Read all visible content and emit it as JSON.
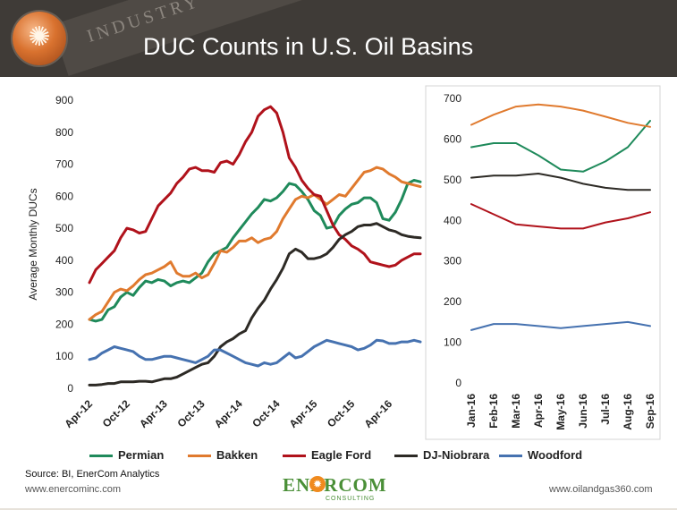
{
  "header": {
    "title": "DUC Counts in U.S. Oil Basins",
    "banner_text": "INDUSTRY"
  },
  "colors": {
    "Permian": "#1f8a5b",
    "Bakken": "#e07a2e",
    "Eagle Ford": "#b0121b",
    "DJ-Niobrara": "#2d2a25",
    "Woodford": "#4672b0"
  },
  "legend": [
    {
      "label": "Permian",
      "color": "#1f8a5b"
    },
    {
      "label": "Bakken",
      "color": "#e07a2e"
    },
    {
      "label": "Eagle Ford",
      "color": "#b0121b"
    },
    {
      "label": "DJ-Niobrara",
      "color": "#2d2a25"
    },
    {
      "label": "Woodford",
      "color": "#4672b0"
    }
  ],
  "source": "Source: BI, EnerCom Analytics",
  "footer": {
    "left_url": "www.enercominc.com",
    "right_url": "www.oilandgas360.com",
    "brand_name": "ENERCOM",
    "brand_sub": "CONSULTING"
  },
  "chart_data": [
    {
      "type": "line",
      "ylabel": "Average Monthly DUCs",
      "ylim": [
        0,
        900
      ],
      "yticks": [
        0,
        100,
        200,
        300,
        400,
        500,
        600,
        700,
        800,
        900
      ],
      "x_tick_labels": [
        "Apr-12",
        "Oct-12",
        "Apr-13",
        "Oct-13",
        "Apr-14",
        "Oct-14",
        "Apr-15",
        "Oct-15",
        "Apr-16"
      ],
      "x_tick_index": [
        0,
        6,
        12,
        18,
        24,
        30,
        36,
        42,
        48
      ],
      "n_points": 54,
      "grid": false,
      "series": [
        {
          "name": "Permian",
          "values": [
            215,
            210,
            215,
            245,
            255,
            285,
            300,
            290,
            315,
            335,
            330,
            340,
            335,
            320,
            330,
            335,
            330,
            345,
            360,
            395,
            420,
            430,
            440,
            470,
            495,
            520,
            545,
            565,
            590,
            585,
            595,
            615,
            640,
            635,
            615,
            590,
            555,
            540,
            500,
            505,
            540,
            560,
            575,
            580,
            595,
            595,
            580,
            530,
            525,
            550,
            590,
            640,
            650,
            645
          ]
        },
        {
          "name": "Bakken",
          "values": [
            215,
            230,
            240,
            270,
            300,
            310,
            305,
            320,
            340,
            355,
            360,
            370,
            380,
            395,
            360,
            350,
            350,
            360,
            345,
            355,
            390,
            430,
            425,
            440,
            460,
            460,
            470,
            455,
            465,
            470,
            490,
            530,
            560,
            590,
            600,
            595,
            605,
            590,
            575,
            590,
            605,
            600,
            625,
            650,
            675,
            680,
            690,
            685,
            670,
            660,
            645,
            640,
            635,
            630
          ]
        },
        {
          "name": "Eagle Ford",
          "values": [
            330,
            370,
            390,
            410,
            430,
            470,
            500,
            495,
            485,
            490,
            530,
            570,
            590,
            610,
            640,
            660,
            685,
            690,
            680,
            680,
            675,
            705,
            710,
            700,
            730,
            770,
            800,
            850,
            870,
            880,
            860,
            800,
            720,
            690,
            650,
            625,
            605,
            600,
            555,
            510,
            480,
            465,
            445,
            435,
            420,
            395,
            390,
            385,
            380,
            385,
            400,
            410,
            420,
            420
          ]
        },
        {
          "name": "DJ-Niobrara",
          "values": [
            10,
            10,
            12,
            15,
            15,
            20,
            20,
            20,
            22,
            22,
            20,
            25,
            30,
            30,
            35,
            45,
            55,
            65,
            75,
            80,
            100,
            130,
            145,
            155,
            170,
            180,
            220,
            250,
            275,
            310,
            340,
            375,
            420,
            435,
            425,
            405,
            405,
            410,
            420,
            440,
            465,
            480,
            490,
            505,
            510,
            510,
            515,
            505,
            495,
            490,
            480,
            475,
            472,
            470
          ]
        },
        {
          "name": "Woodford",
          "values": [
            90,
            95,
            110,
            120,
            130,
            125,
            120,
            115,
            100,
            90,
            90,
            95,
            100,
            100,
            95,
            90,
            85,
            80,
            90,
            100,
            120,
            120,
            110,
            100,
            90,
            80,
            75,
            70,
            80,
            75,
            80,
            95,
            110,
            95,
            100,
            115,
            130,
            140,
            150,
            145,
            140,
            135,
            130,
            120,
            125,
            135,
            150,
            148,
            140,
            140,
            145,
            145,
            150,
            145
          ]
        }
      ]
    },
    {
      "type": "line",
      "categories": [
        "Jan-16",
        "Feb-16",
        "Mar-16",
        "Apr-16",
        "May-16",
        "Jun-16",
        "Jul-16",
        "Aug-16",
        "Sep-16"
      ],
      "ylim": [
        0,
        700
      ],
      "yticks": [
        0,
        100,
        200,
        300,
        400,
        500,
        600,
        700
      ],
      "grid": false,
      "series": [
        {
          "name": "Permian",
          "values": [
            580,
            590,
            590,
            560,
            525,
            520,
            545,
            580,
            645
          ]
        },
        {
          "name": "Bakken",
          "values": [
            635,
            660,
            680,
            685,
            680,
            670,
            655,
            640,
            630
          ]
        },
        {
          "name": "Eagle Ford",
          "values": [
            440,
            415,
            390,
            385,
            380,
            380,
            395,
            405,
            420
          ]
        },
        {
          "name": "DJ-Niobrara",
          "values": [
            505,
            510,
            510,
            515,
            505,
            490,
            480,
            475,
            475
          ]
        },
        {
          "name": "Woodford",
          "values": [
            130,
            145,
            145,
            140,
            135,
            140,
            145,
            150,
            140
          ]
        }
      ]
    }
  ]
}
